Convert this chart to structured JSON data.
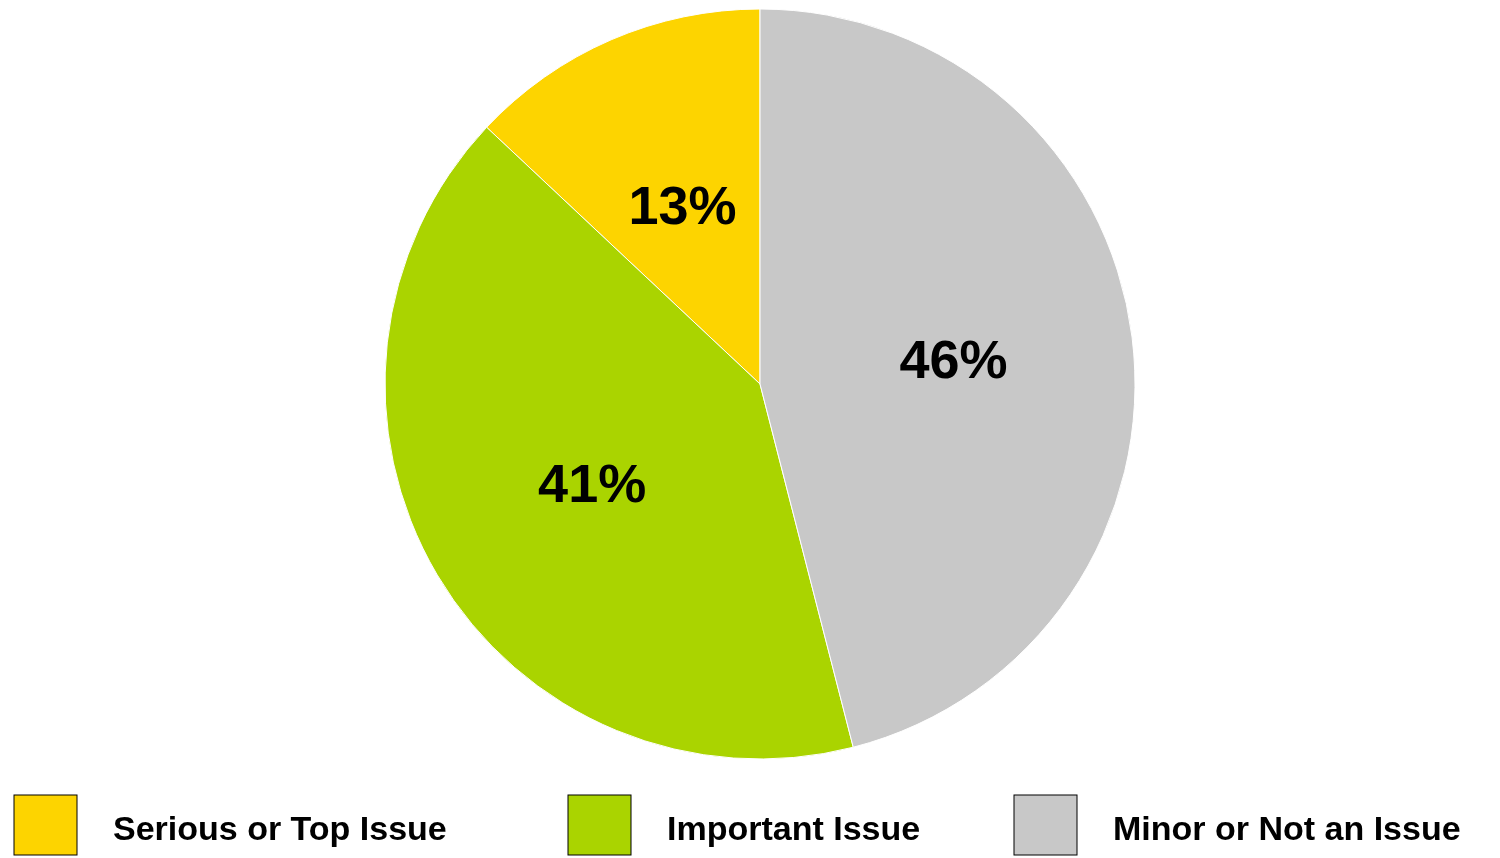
{
  "chart_data": {
    "type": "pie",
    "categories": [
      "Serious or Top Issue",
      "Important Issue",
      "Minor or Not an Issue"
    ],
    "values": [
      13,
      41,
      46
    ],
    "colors": [
      "#fdd400",
      "#aad400",
      "#c8c8c8"
    ],
    "value_labels": [
      "13%",
      "41%",
      "46%"
    ],
    "legend": "bottom"
  }
}
